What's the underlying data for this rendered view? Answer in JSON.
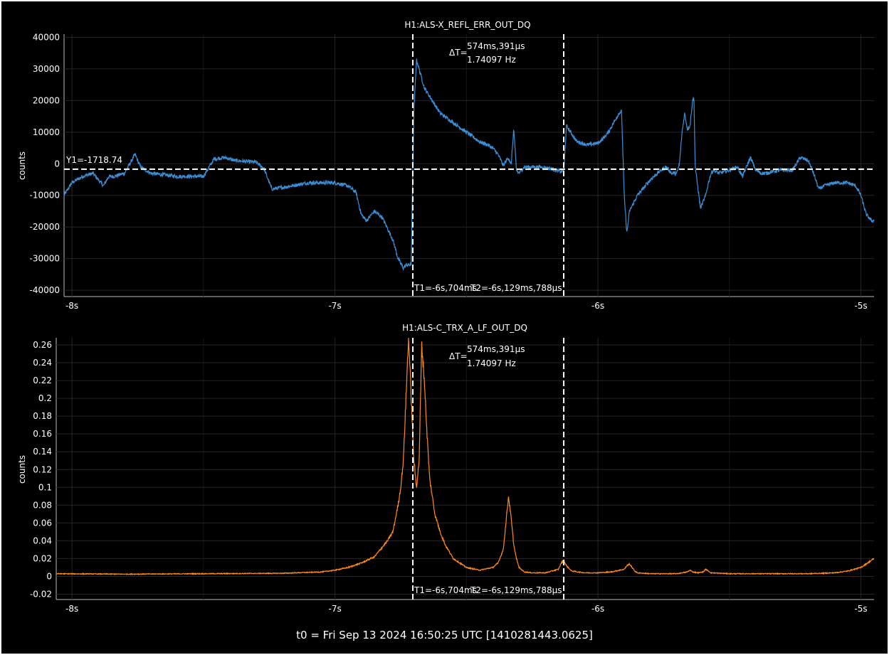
{
  "footer": "t0 = Fri Sep 13 2024 16:50:25 UTC [1410281443.0625]",
  "colors": {
    "top_trace": "#3c8fd6",
    "bottom_trace": "#ff8a1e",
    "grid": "#262626",
    "cursor": "#ffffff"
  },
  "chart_data": [
    {
      "type": "line",
      "title": "H1:ALS-X_REFL_ERR_OUT_DQ",
      "ylabel": "counts",
      "xlim": [
        -8.03,
        -4.95
      ],
      "ylim": [
        -42000,
        41000
      ],
      "xticks": [
        -8,
        -7,
        -6,
        -5
      ],
      "xtick_labels": [
        "-8s",
        "-7s",
        "-6s",
        "-5s"
      ],
      "yticks": [
        -40000,
        -30000,
        -20000,
        -10000,
        0,
        10000,
        20000,
        30000,
        40000
      ],
      "ytick_labels": [
        "-40000",
        "-30000",
        "-20000",
        "-10000",
        "0",
        "10000",
        "20000",
        "30000",
        "40000"
      ],
      "grid": true,
      "series": [
        {
          "x": [
            -8.03,
            -8.0,
            -7.96,
            -7.92,
            -7.88,
            -7.86,
            -7.84,
            -7.8,
            -7.76,
            -7.74,
            -7.7,
            -7.6,
            -7.5,
            -7.46,
            -7.42,
            -7.38,
            -7.3,
            -7.27,
            -7.24,
            -7.2,
            -7.1,
            -7.0,
            -6.95,
            -6.92,
            -6.9,
            -6.88,
            -6.85,
            -6.82,
            -6.78,
            -6.76,
            -6.74,
            -6.73,
            -6.71,
            -6.7,
            -6.69,
            -6.66,
            -6.6,
            -6.5,
            -6.45,
            -6.42,
            -6.4,
            -6.38,
            -6.36,
            -6.34,
            -6.33,
            -6.32,
            -6.31,
            -6.3,
            -6.29,
            -6.28,
            -6.26,
            -6.22,
            -6.18,
            -6.16,
            -6.14,
            -6.13,
            -6.129,
            -6.12,
            -6.08,
            -6.04,
            -6.0,
            -5.98,
            -5.96,
            -5.94,
            -5.92,
            -5.91,
            -5.9,
            -5.89,
            -5.88,
            -5.85,
            -5.8,
            -5.76,
            -5.74,
            -5.72,
            -5.7,
            -5.69,
            -5.68,
            -5.67,
            -5.66,
            -5.65,
            -5.64,
            -5.635,
            -5.63,
            -5.61,
            -5.59,
            -5.58,
            -5.57,
            -5.56,
            -5.54,
            -5.5,
            -5.47,
            -5.45,
            -5.44,
            -5.42,
            -5.4,
            -5.38,
            -5.36,
            -5.34,
            -5.3,
            -5.26,
            -5.23,
            -5.2,
            -5.18,
            -5.16,
            -5.14,
            -5.1,
            -5.05,
            -5.02,
            -5.0,
            -4.98,
            -4.96
          ],
          "y": [
            -10000,
            -6000,
            -4000,
            -3000,
            -7000,
            -4000,
            -4000,
            -3000,
            3000,
            -1000,
            -3000,
            -4000,
            -4000,
            1500,
            2000,
            1000,
            500,
            -1500,
            -8000,
            -7500,
            -6000,
            -6000,
            -7000,
            -9000,
            -16000,
            -18000,
            -15000,
            -17000,
            -24000,
            -30000,
            -33000,
            -32000,
            -32000,
            16000,
            33000,
            24000,
            16000,
            10000,
            7000,
            6000,
            5000,
            3000,
            -500,
            2000,
            -500,
            11000,
            -2000,
            -3000,
            -2000,
            -1000,
            -1000,
            -1000,
            -1500,
            -2000,
            -2500,
            -2000,
            -1718.74,
            12000,
            7000,
            6000,
            6500,
            8000,
            10000,
            13000,
            16000,
            16500,
            -10000,
            -22000,
            -15000,
            -10000,
            -5000,
            -2000,
            -1000,
            -3000,
            -3000,
            0,
            10000,
            16000,
            11000,
            12000,
            20000,
            21000,
            -1000,
            -14000,
            -10000,
            -6000,
            -3000,
            -2000,
            -3000,
            -2000,
            -1000,
            -4000,
            -2000,
            2000,
            -2000,
            -3000,
            -3000,
            -2500,
            -2000,
            -2000,
            2000,
            1000,
            -3000,
            -8000,
            -7000,
            -6000,
            -6000,
            -7000,
            -10000,
            -16000,
            -18000
          ],
          "noise": 1200
        }
      ],
      "cursors": {
        "t1": -6.704,
        "t2": -6.13,
        "y1": -1718.74,
        "t1_label": "T1=-6s,704ms",
        "t2_label": "T2=-6s,129ms,788μs",
        "y1_label": "Y1=-1718.74",
        "delta_prefix": "ΔT=",
        "delta_time": "574ms,391μs",
        "delta_freq": "1.74097 Hz"
      }
    },
    {
      "type": "line",
      "title": "H1:ALS-C_TRX_A_LF_OUT_DQ",
      "ylabel": "counts",
      "xlim": [
        -8.06,
        -4.95
      ],
      "ylim": [
        -0.026,
        0.268
      ],
      "xticks": [
        -8,
        -7,
        -6,
        -5
      ],
      "xtick_labels": [
        "-8s",
        "-7s",
        "-6s",
        "-5s"
      ],
      "yticks": [
        -0.02,
        0,
        0.02,
        0.04,
        0.06,
        0.08,
        0.1,
        0.12,
        0.14,
        0.16,
        0.18,
        0.2,
        0.22,
        0.24,
        0.26
      ],
      "ytick_labels": [
        "-0.02",
        "0",
        "0.02",
        "0.04",
        "0.06",
        "0.08",
        "0.1",
        "0.12",
        "0.14",
        "0.16",
        "0.18",
        "0.2",
        "0.22",
        "0.24",
        "0.26"
      ],
      "grid": true,
      "series": [
        {
          "x": [
            -8.06,
            -7.8,
            -7.5,
            -7.2,
            -7.05,
            -7.0,
            -6.95,
            -6.9,
            -6.85,
            -6.8,
            -6.78,
            -6.76,
            -6.75,
            -6.74,
            -6.73,
            -6.72,
            -6.71,
            -6.7,
            -6.69,
            -6.68,
            -6.67,
            -6.66,
            -6.65,
            -6.64,
            -6.62,
            -6.6,
            -6.58,
            -6.55,
            -6.5,
            -6.45,
            -6.4,
            -6.38,
            -6.36,
            -6.35,
            -6.34,
            -6.33,
            -6.32,
            -6.31,
            -6.3,
            -6.28,
            -6.25,
            -6.2,
            -6.15,
            -6.14,
            -6.13,
            -6.12,
            -6.1,
            -6.05,
            -6.0,
            -5.95,
            -5.9,
            -5.89,
            -5.88,
            -5.87,
            -5.86,
            -5.85,
            -5.8,
            -5.7,
            -5.66,
            -5.65,
            -5.64,
            -5.62,
            -5.6,
            -5.59,
            -5.58,
            -5.57,
            -5.5,
            -5.3,
            -5.2,
            -5.1,
            -5.05,
            -5.0,
            -4.97,
            -4.95
          ],
          "y": [
            0.003,
            0.0025,
            0.003,
            0.0035,
            0.005,
            0.007,
            0.01,
            0.015,
            0.022,
            0.04,
            0.05,
            0.08,
            0.1,
            0.13,
            0.2,
            0.27,
            0.2,
            0.13,
            0.1,
            0.13,
            0.26,
            0.22,
            0.16,
            0.11,
            0.07,
            0.05,
            0.035,
            0.02,
            0.01,
            0.007,
            0.01,
            0.015,
            0.03,
            0.06,
            0.09,
            0.065,
            0.035,
            0.02,
            0.01,
            0.005,
            0.004,
            0.004,
            0.008,
            0.015,
            0.018,
            0.012,
            0.006,
            0.004,
            0.004,
            0.005,
            0.008,
            0.012,
            0.014,
            0.01,
            0.006,
            0.004,
            0.003,
            0.003,
            0.005,
            0.007,
            0.005,
            0.004,
            0.005,
            0.008,
            0.006,
            0.004,
            0.003,
            0.003,
            0.003,
            0.004,
            0.006,
            0.01,
            0.016,
            0.02
          ],
          "noise": 0.0025
        }
      ],
      "cursors": {
        "t1": -6.704,
        "t2": -6.13,
        "t1_label": "T1=-6s,704ms",
        "t2_label": "T2=-6s,129ms,788μs",
        "delta_prefix": "ΔT=",
        "delta_time": "574ms,391μs",
        "delta_freq": "1.74097 Hz"
      }
    }
  ]
}
